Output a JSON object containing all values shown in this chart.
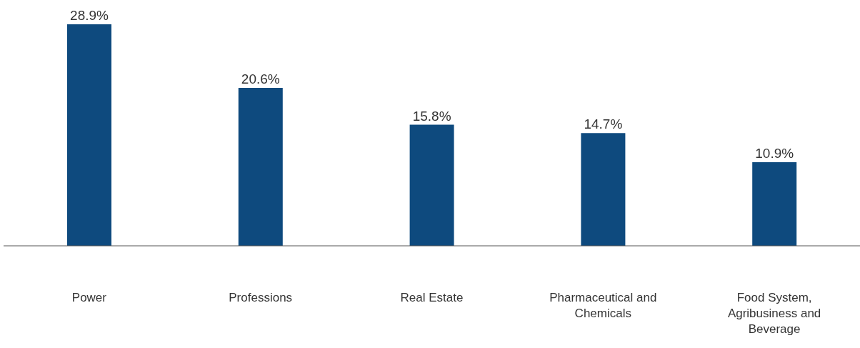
{
  "chart_data": {
    "type": "bar",
    "categories": [
      "Power",
      "Professions",
      "Real Estate",
      "Pharmaceutical and Chemicals",
      "Food System, Agribusiness and Beverage"
    ],
    "values": [
      28.9,
      20.6,
      15.8,
      14.7,
      10.9
    ],
    "value_labels": [
      "28.9%",
      "20.6%",
      "15.8%",
      "14.7%",
      "10.9%"
    ],
    "color": "#0e4a7e"
  }
}
